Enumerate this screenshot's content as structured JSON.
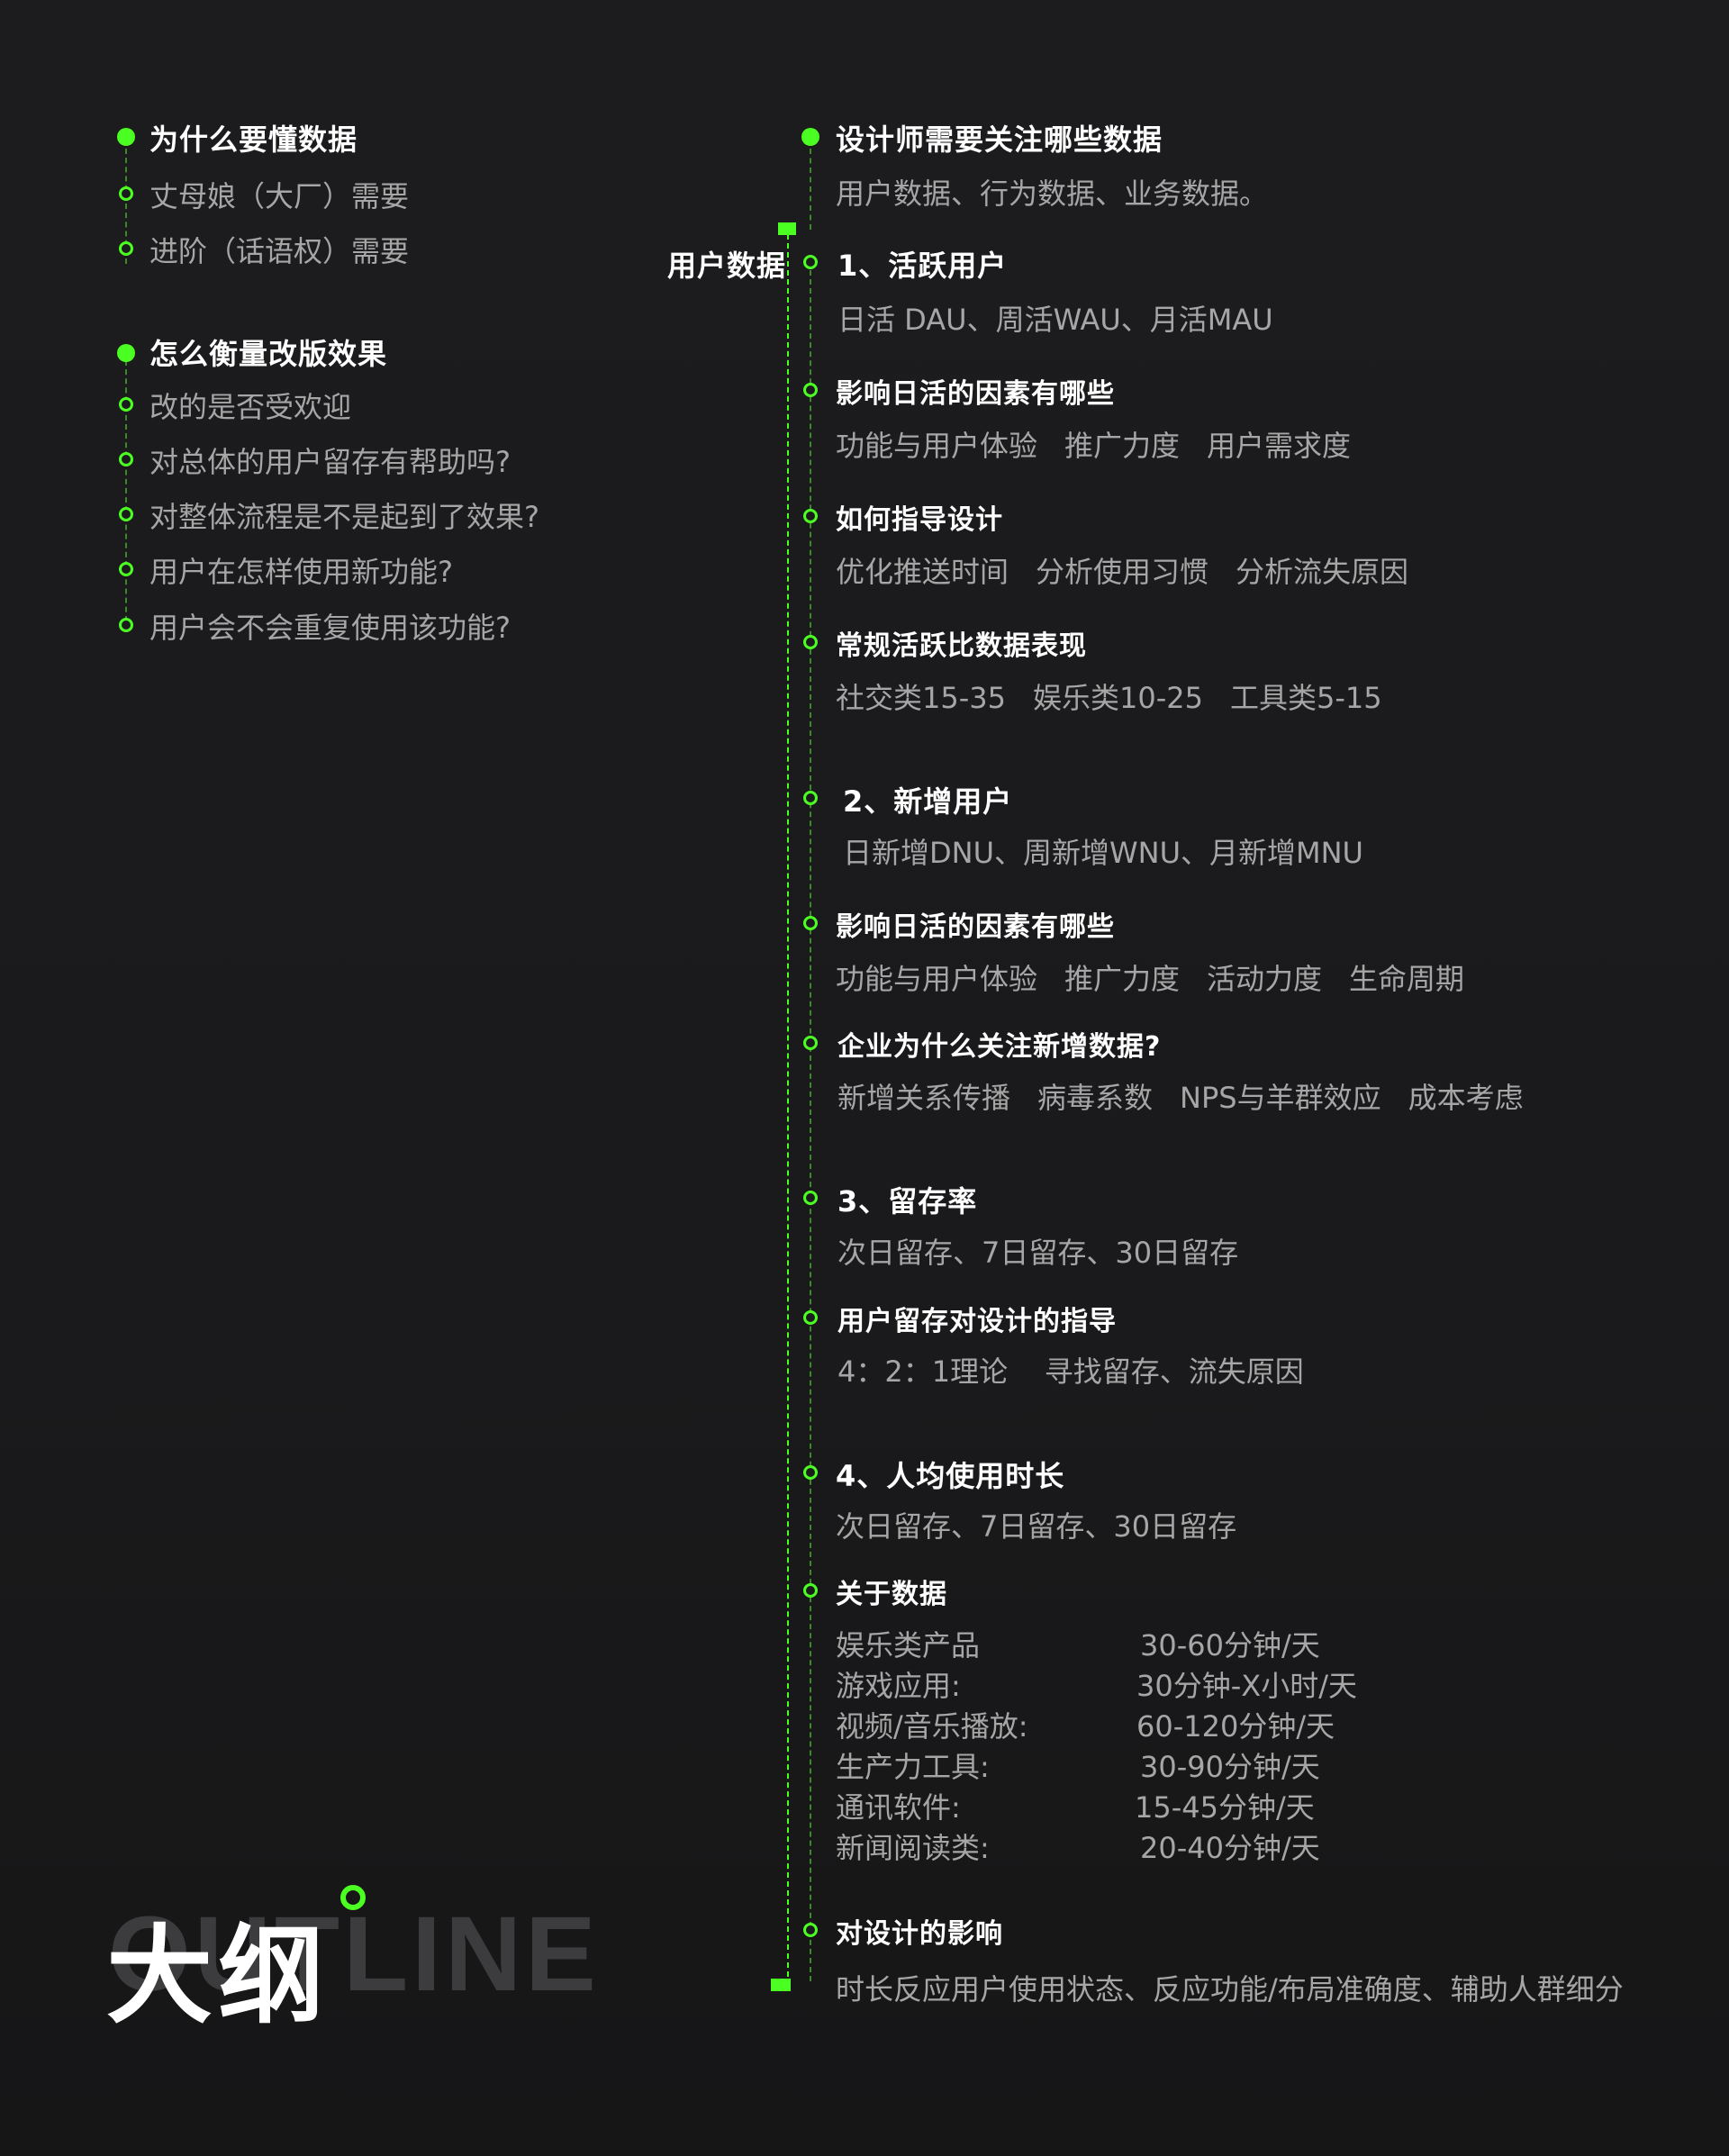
{
  "left": {
    "section1": {
      "title": "为什么要懂数据",
      "items": [
        "丈母娘（大厂）需要",
        "进阶（话语权）需要"
      ]
    },
    "section2": {
      "title": "怎么衡量改版效果",
      "items": [
        "改的是否受欢迎",
        "对总体的用户留存有帮助吗?",
        "对整体流程是不是起到了效果?",
        "用户在怎样使用新功能?",
        "用户会不会重复使用该功能?"
      ]
    }
  },
  "right": {
    "main_title": "设计师需要关注哪些数据",
    "main_sub": "用户数据、行为数据、业务数据。",
    "side_label": "用户数据",
    "s1": {
      "title": "1、活跃用户",
      "sub": "日活 DAU、周活WAU、月活MAU",
      "q1": "影响日活的因素有哪些",
      "q1_items": [
        "功能与用户体验",
        "推广力度",
        "用户需求度"
      ],
      "q2": "如何指导设计",
      "q2_items": [
        "优化推送时间",
        "分析使用习惯",
        "分析流失原因"
      ],
      "q3": "常规活跃比数据表现",
      "q3_items": [
        "社交类15-35",
        "娱乐类10-25",
        "工具类5-15"
      ]
    },
    "s2": {
      "title": "2、新增用户",
      "sub": "日新增DNU、周新增WNU、月新增MNU",
      "q1": "影响日活的因素有哪些",
      "q1_items": [
        "功能与用户体验",
        "推广力度",
        "活动力度",
        "生命周期"
      ],
      "q2": "企业为什么关注新增数据?",
      "q2_items": [
        "新增关系传播",
        "病毒系数",
        "NPS与羊群效应",
        "成本考虑"
      ]
    },
    "s3": {
      "title": "3、留存率",
      "sub": "次日留存、7日留存、30日留存",
      "q1": "用户留存对设计的指导",
      "q1_text": "4：2：1理论    寻找留存、流失原因"
    },
    "s4": {
      "title": "4、人均使用时长",
      "sub": "次日留存、7日留存、30日留存",
      "q1": "关于数据",
      "usage": [
        {
          "label": "娱乐类产品",
          "value": "30-60分钟/天"
        },
        {
          "label": "游戏应用:",
          "value": "30分钟-X小时/天"
        },
        {
          "label": "视频/音乐播放:",
          "value": "60-120分钟/天"
        },
        {
          "label": "生产力工具:",
          "value": "30-90分钟/天"
        },
        {
          "label": "通讯软件:",
          "value": "15-45分钟/天"
        },
        {
          "label": "新闻阅读类:",
          "value": "20-40分钟/天"
        }
      ],
      "q2": "对设计的影响",
      "q2_text": "时长反应用户使用状态、反应功能/布局准确度、辅助人群细分"
    }
  },
  "logo": {
    "cn": "大纲",
    "en": "OUTLINE"
  },
  "colors": {
    "accent": "#4cff22",
    "background": "#1c1c1e",
    "heading": "#ffffff",
    "body_text": "#a6a6a6"
  }
}
